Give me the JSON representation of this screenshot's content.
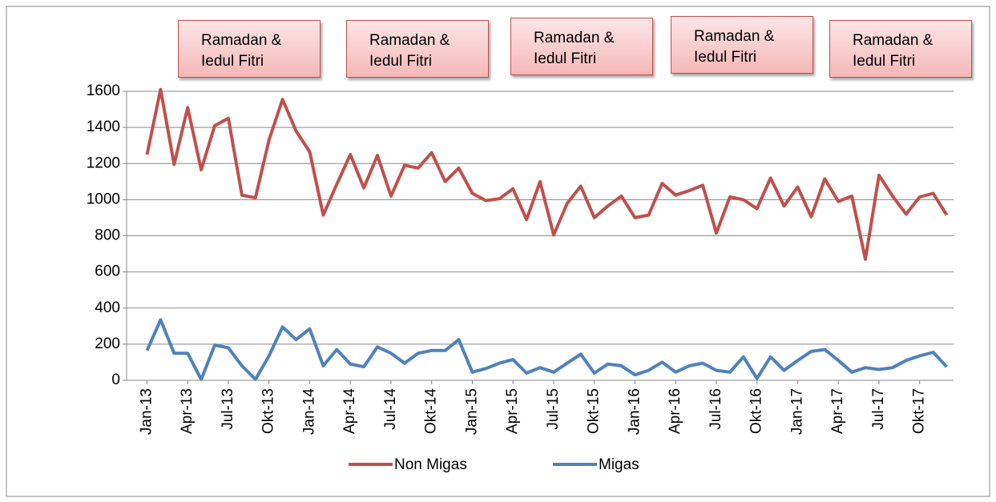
{
  "chart_data": {
    "type": "line",
    "categories": [
      "Jan-13",
      null,
      null,
      "Apr-13",
      null,
      null,
      "Jul-13",
      null,
      null,
      "Okt-13",
      null,
      null,
      "Jan-14",
      null,
      null,
      "Apr-14",
      null,
      null,
      "Jul-14",
      null,
      null,
      "Okt-14",
      null,
      null,
      "Jan-15",
      null,
      null,
      "Apr-15",
      null,
      null,
      "Jul-15",
      null,
      null,
      "Okt-15",
      null,
      null,
      "Jan-16",
      null,
      null,
      "Apr-16",
      null,
      null,
      "Jul-16",
      null,
      null,
      "Okt-16",
      null,
      null,
      "Jan-17",
      null,
      null,
      "Apr-17",
      null,
      null,
      "Jul-17",
      null,
      null,
      "Okt-17",
      null,
      null
    ],
    "series": [
      {
        "name": "Non Migas",
        "color": "#c0504d",
        "values": [
          1250,
          1610,
          1195,
          1510,
          1165,
          1410,
          1450,
          1025,
          1010,
          1330,
          1555,
          1380,
          1265,
          915,
          1085,
          1250,
          1065,
          1245,
          1020,
          1190,
          1175,
          1260,
          1100,
          1175,
          1035,
          995,
          1005,
          1060,
          890,
          1100,
          805,
          980,
          1075,
          900,
          965,
          1020,
          900,
          915,
          1090,
          1025,
          1050,
          1080,
          815,
          1015,
          1000,
          950,
          1120,
          965,
          1070,
          905,
          1115,
          990,
          1020,
          670,
          1135,
          1020,
          920,
          1015,
          1035,
          915
        ]
      },
      {
        "name": "Migas",
        "color": "#4f81bd",
        "values": [
          165,
          335,
          150,
          150,
          5,
          195,
          180,
          80,
          5,
          135,
          295,
          225,
          285,
          80,
          170,
          90,
          75,
          185,
          150,
          95,
          150,
          165,
          165,
          225,
          45,
          65,
          95,
          115,
          40,
          70,
          45,
          95,
          145,
          40,
          90,
          80,
          30,
          55,
          100,
          45,
          80,
          95,
          55,
          45,
          130,
          10,
          130,
          55,
          110,
          160,
          170,
          110,
          45,
          70,
          60,
          70,
          110,
          135,
          155,
          75
        ]
      }
    ],
    "ylim": [
      0,
      1600
    ],
    "yticks": [
      0,
      200,
      400,
      600,
      800,
      1000,
      1200,
      1400,
      1600
    ],
    "grid": true,
    "legend": "bottom",
    "annotations": [
      "Ramadan & Iedul Fitri",
      "Ramadan & Iedul Fitri",
      "Ramadan & Iedul Fitri",
      "Ramadan & Iedul Fitri",
      "Ramadan & Iedul Fitri"
    ]
  }
}
